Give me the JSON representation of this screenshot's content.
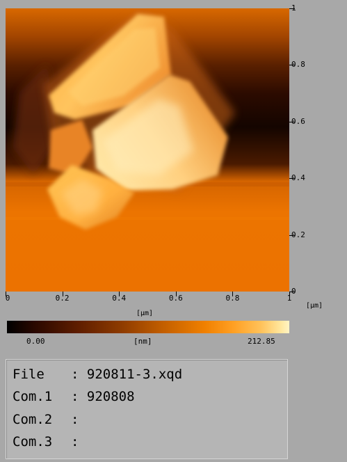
{
  "scan": {
    "y_axis": {
      "ticks": [
        {
          "value": 1,
          "label": "1"
        },
        {
          "value": 0.8,
          "label": "0.8"
        },
        {
          "value": 0.6,
          "label": "0.6"
        },
        {
          "value": 0.4,
          "label": "0.4"
        },
        {
          "value": 0.2,
          "label": "0.2"
        },
        {
          "value": 0,
          "label": "0"
        }
      ],
      "unit": "[μm]"
    },
    "x_axis": {
      "ticks": [
        {
          "value": 0,
          "label": "0"
        },
        {
          "value": 0.2,
          "label": "0.2"
        },
        {
          "value": 0.4,
          "label": "0.4"
        },
        {
          "value": 0.6,
          "label": "0.6"
        },
        {
          "value": 0.8,
          "label": "0.8"
        },
        {
          "value": 1,
          "label": "1"
        }
      ],
      "unit": "[μm]"
    },
    "range_um": [
      0,
      1
    ]
  },
  "colorbar": {
    "min_label": "0.00",
    "unit": "[nm]",
    "max_label": "212.85",
    "colors": [
      "#000000",
      "#5e1d00",
      "#c25e00",
      "#f08000",
      "#ffc25a",
      "#fff4c4"
    ]
  },
  "info": {
    "rows": [
      {
        "key": "File",
        "value": ": 920811-3.xqd"
      },
      {
        "key": "Com.1",
        "value": ": 920808"
      },
      {
        "key": "Com.2",
        "value": ":"
      },
      {
        "key": "Com.3",
        "value": ":"
      }
    ]
  },
  "background_color": "#a8a8a8"
}
